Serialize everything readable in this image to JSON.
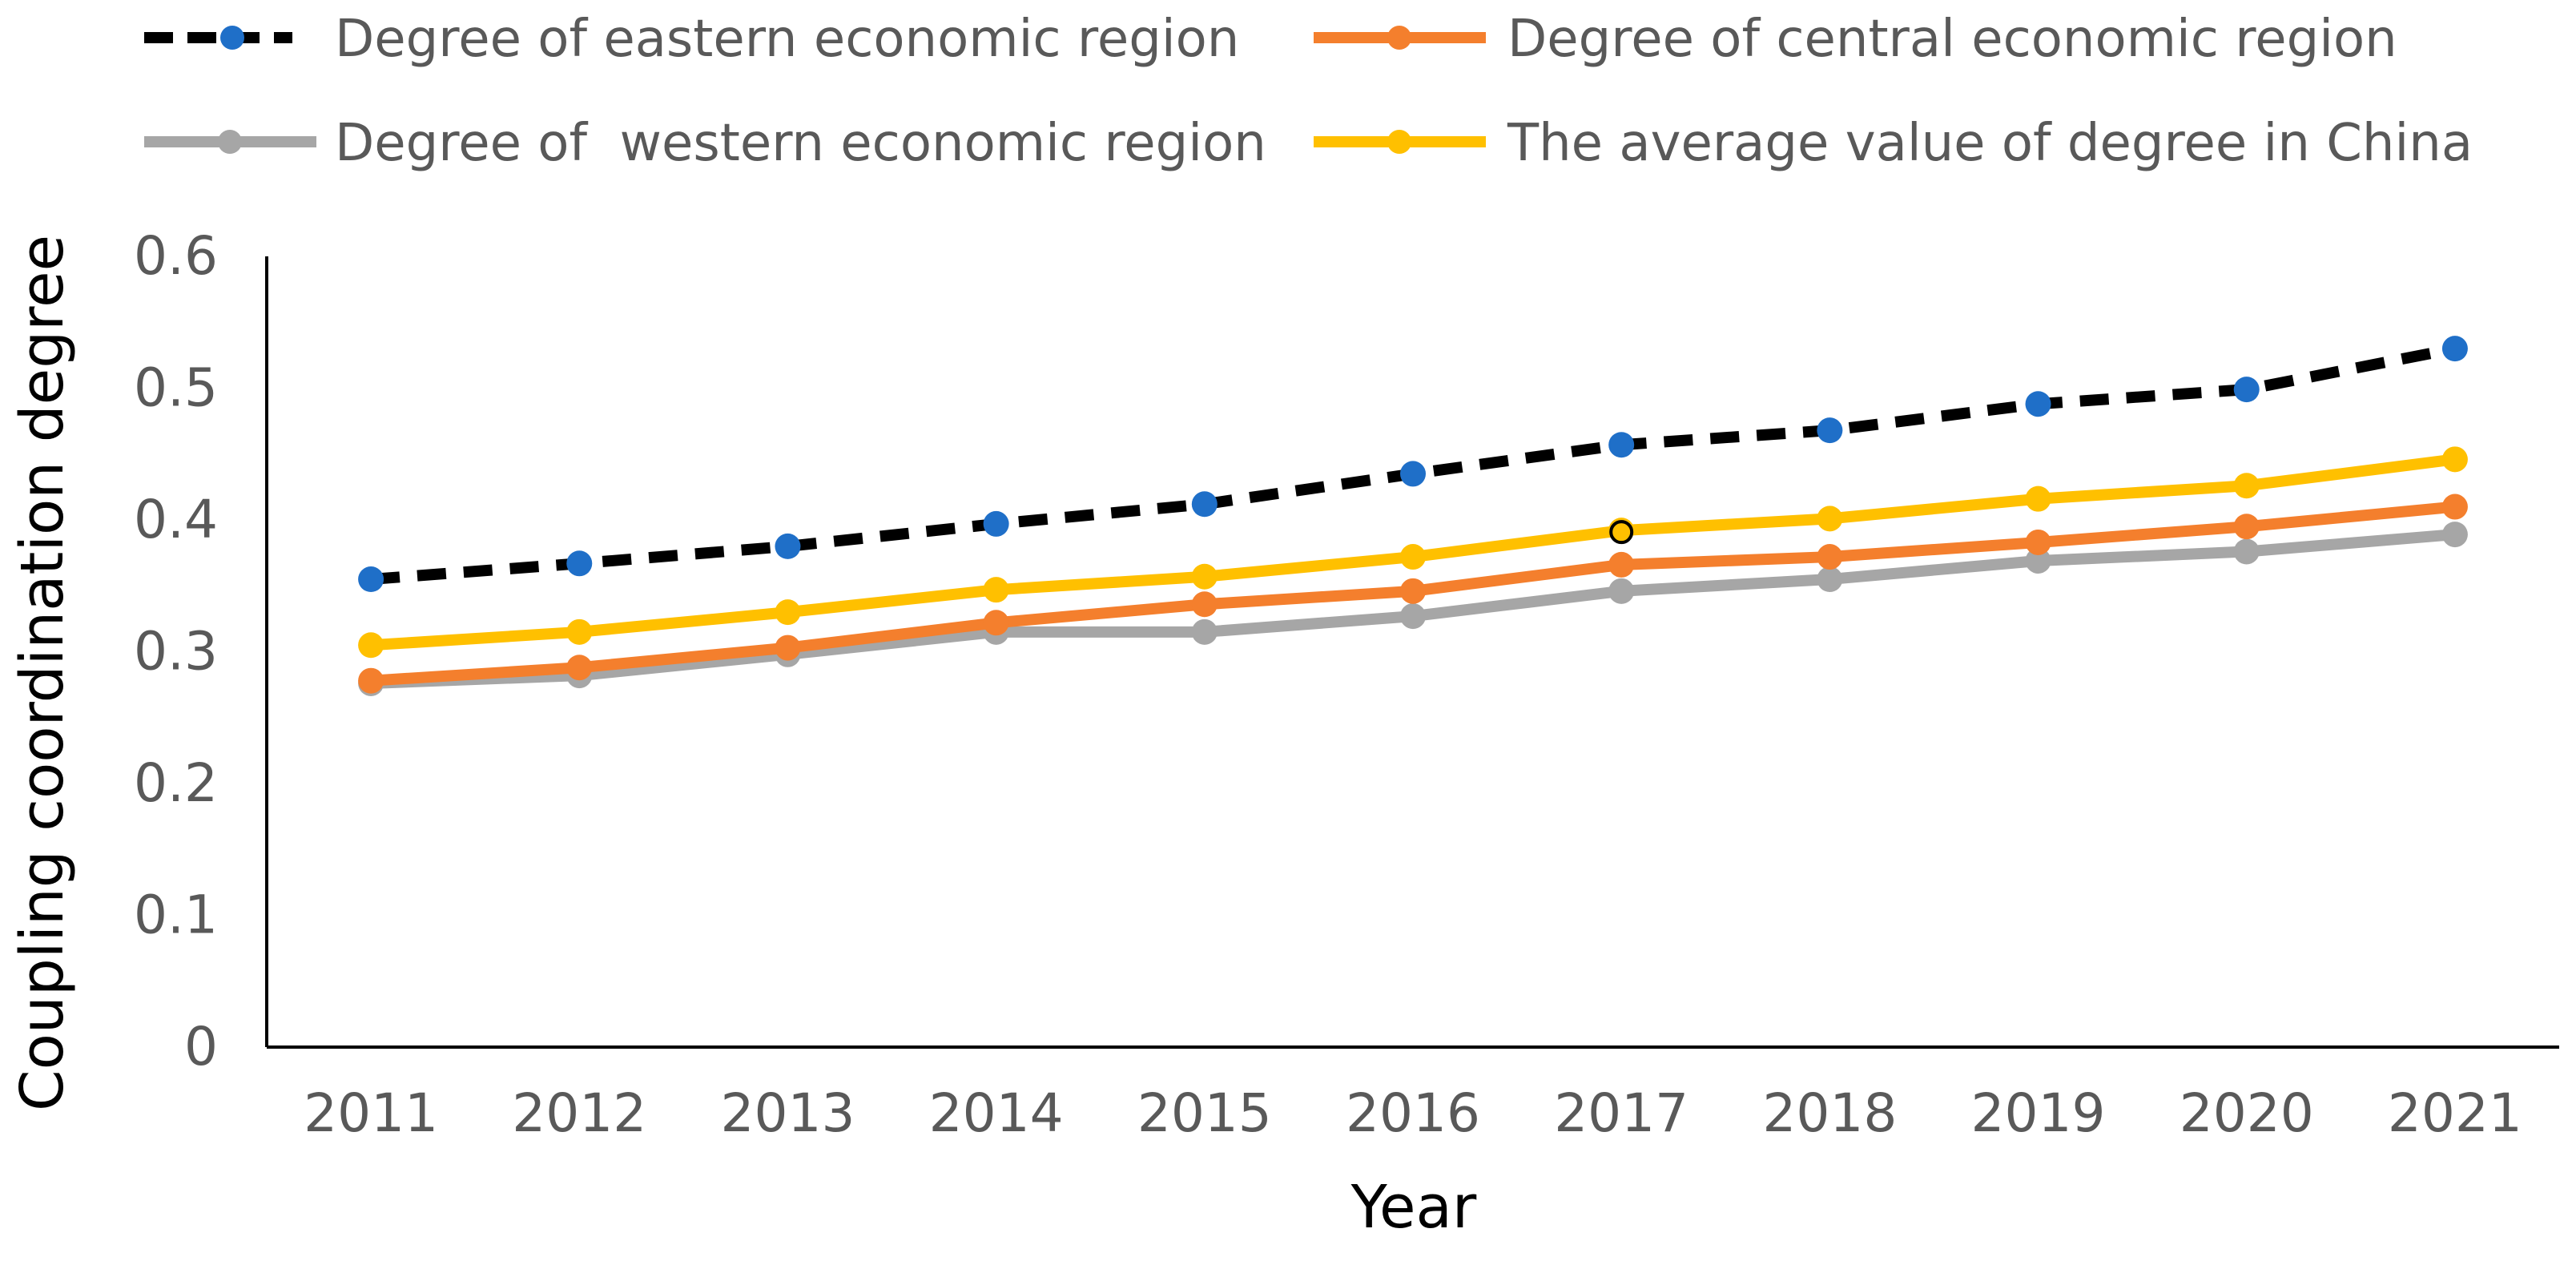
{
  "chart_data": {
    "type": "line",
    "title": "",
    "xlabel": "Year",
    "ylabel": "Coupling coordination degree",
    "x": [
      "2011",
      "2012",
      "2013",
      "2014",
      "2015",
      "2016",
      "2017",
      "2018",
      "2019",
      "2020",
      "2021"
    ],
    "ylim": [
      0,
      0.6
    ],
    "yticks": [
      0,
      0.1,
      0.2,
      0.3,
      0.4,
      0.5,
      0.6
    ],
    "ytick_labels": [
      "0",
      "0.1",
      "0.2",
      "0.3",
      "0.4",
      "0.5",
      "0.6"
    ],
    "grid": false,
    "legend_position": "top",
    "series": [
      {
        "name": "Degree of eastern economic region",
        "color": "#000000",
        "marker_color": "#1f6fc8",
        "style": "dashed",
        "values": [
          0.355,
          0.367,
          0.38,
          0.397,
          0.412,
          0.435,
          0.457,
          0.468,
          0.488,
          0.499,
          0.53
        ]
      },
      {
        "name": "Degree of central economic region",
        "color": "#f47f2d",
        "marker_color": "#f47f2d",
        "style": "solid",
        "values": [
          0.278,
          0.288,
          0.303,
          0.322,
          0.336,
          0.346,
          0.366,
          0.372,
          0.383,
          0.395,
          0.41
        ]
      },
      {
        "name": "Degree of  western economic region",
        "color": "#a6a6a6",
        "marker_color": "#a6a6a6",
        "style": "solid",
        "values": [
          0.276,
          0.282,
          0.298,
          0.315,
          0.315,
          0.327,
          0.346,
          0.355,
          0.369,
          0.376,
          0.389
        ]
      },
      {
        "name": "The average value of degree in China",
        "color": "#ffc000",
        "marker_color": "#ffc000",
        "style": "solid",
        "values": [
          0.305,
          0.315,
          0.33,
          0.347,
          0.357,
          0.372,
          0.392,
          0.401,
          0.416,
          0.426,
          0.446
        ]
      }
    ]
  }
}
